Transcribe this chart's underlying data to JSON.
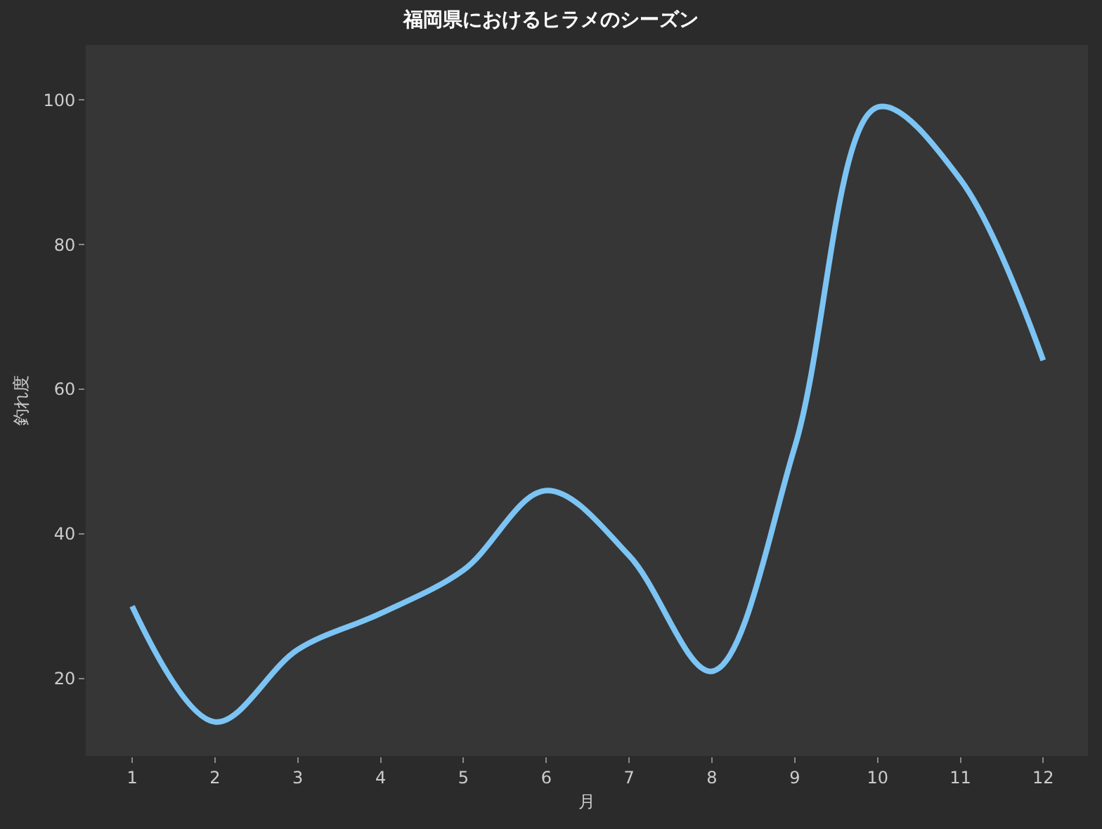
{
  "chart_data": {
    "type": "line",
    "title": "福岡県におけるヒラメのシーズン",
    "xlabel": "月",
    "ylabel": "釣れ度",
    "x": [
      1,
      2,
      3,
      4,
      5,
      6,
      7,
      8,
      9,
      10,
      11,
      12
    ],
    "series": [
      {
        "color": "#7cc4f4",
        "values": [
          30,
          14,
          24,
          29,
          35,
          46,
          37,
          21,
          52,
          99,
          89,
          64
        ]
      }
    ],
    "xlim": [
      0.44,
      12.54
    ],
    "xticks": [
      1,
      2,
      3,
      4,
      5,
      6,
      7,
      8,
      9,
      10,
      11,
      12
    ],
    "ylim": [
      9.3,
      107.6
    ],
    "yticks": [
      20,
      40,
      60,
      80,
      100
    ],
    "grid": false,
    "legend": false
  }
}
